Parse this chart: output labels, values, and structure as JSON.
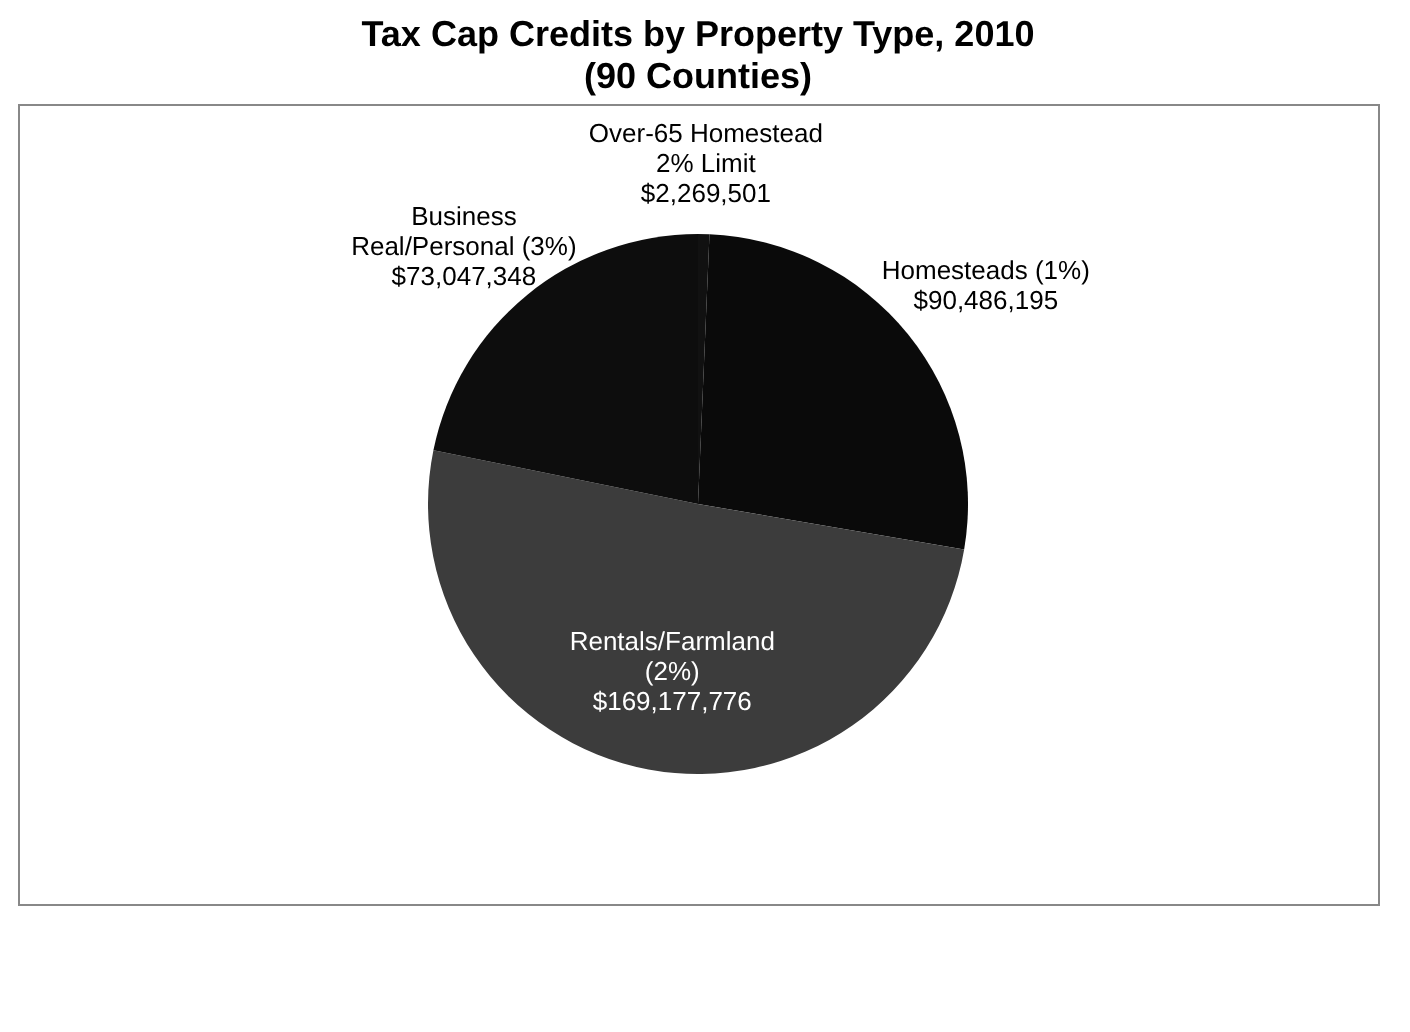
{
  "chart_data": {
    "type": "pie",
    "title": "Tax Cap Credits by Property Type, 2010",
    "subtitle": "(90 Counties)",
    "categories": [
      "Over-65 Homestead 2% Limit",
      "Homesteads (1%)",
      "Rentals/Farmland (2%)",
      "Business Real/Personal (3%)"
    ],
    "values": [
      2269501,
      90486195,
      169177776,
      73047348
    ],
    "value_labels": [
      "$2,269,501",
      "$90,486,195",
      "$169,177,776",
      "$73,047,348"
    ],
    "colors": [
      "#111111",
      "#0a0a0a",
      "#3c3c3c",
      "#0d0d0d"
    ],
    "legend": false
  }
}
